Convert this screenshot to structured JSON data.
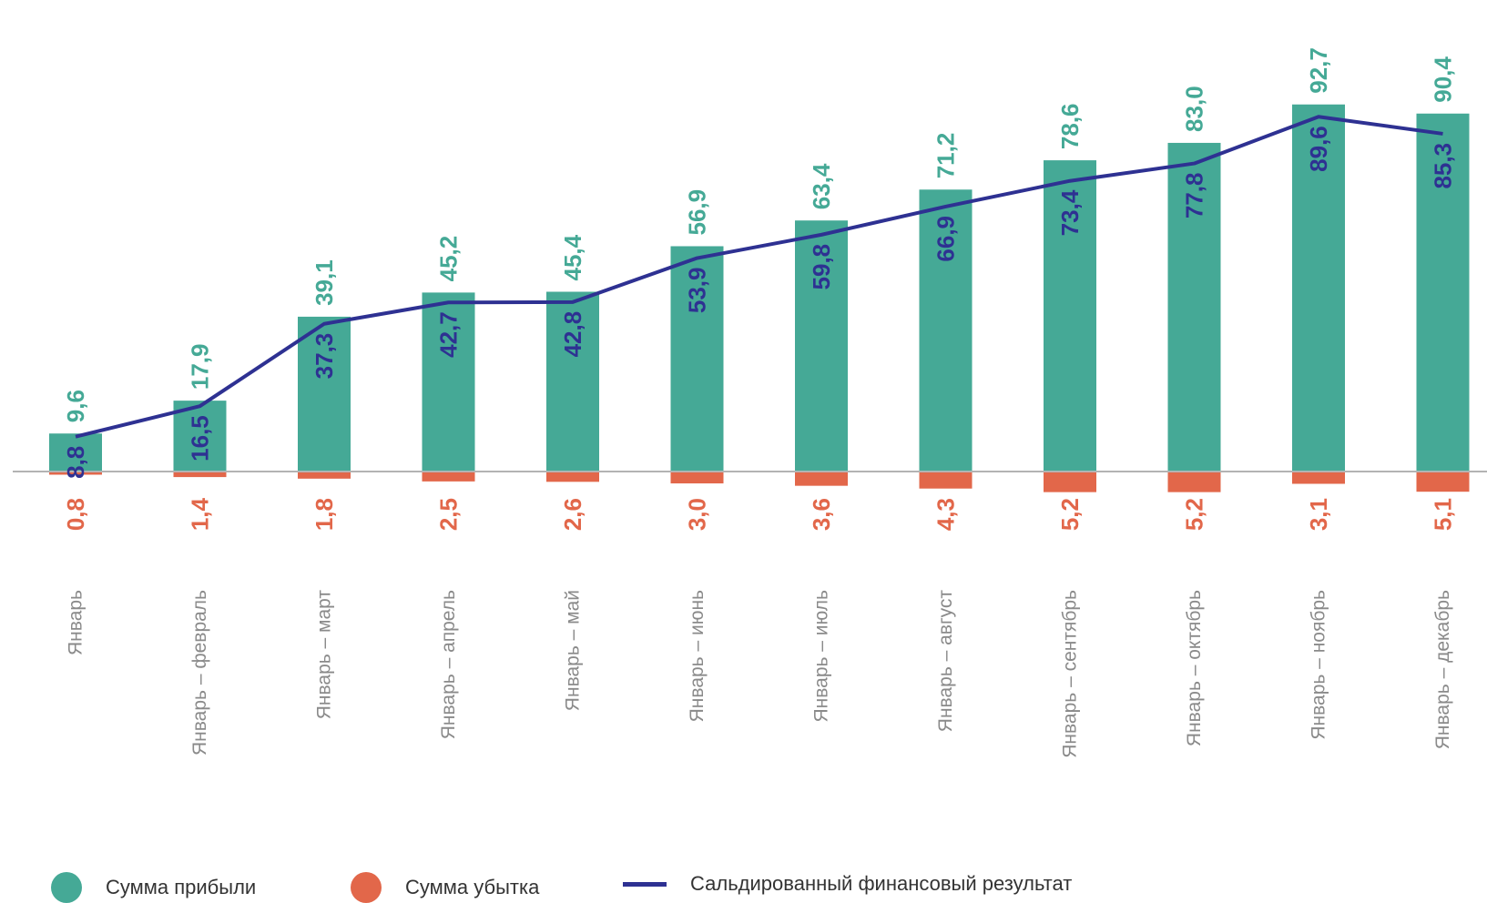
{
  "chart_data": {
    "type": "bar",
    "categories": [
      "Январь",
      "Январь – февраль",
      "Январь – март",
      "Январь – апрель",
      "Январь – май",
      "Январь – июнь",
      "Январь – июль",
      "Январь – август",
      "Январь – сентябрь",
      "Январь – октябрь",
      "Январь – ноябрь",
      "Январь – декабрь"
    ],
    "series": [
      {
        "name": "Сумма прибыли",
        "kind": "bar",
        "color": "#45a996",
        "values": [
          9.6,
          17.9,
          39.1,
          45.2,
          45.4,
          56.9,
          63.4,
          71.2,
          78.6,
          83.0,
          92.7,
          90.4
        ],
        "labels": [
          "9,6",
          "17,9",
          "39,1",
          "45,2",
          "45,4",
          "56,9",
          "63,4",
          "71,2",
          "78,6",
          "83,0",
          "92,7",
          "90,4"
        ]
      },
      {
        "name": "Сумма убытка",
        "kind": "bar-negative",
        "color": "#e2674a",
        "values": [
          0.8,
          1.4,
          1.8,
          2.5,
          2.6,
          3.0,
          3.6,
          4.3,
          5.2,
          5.2,
          3.1,
          5.1
        ],
        "labels": [
          "0,8",
          "1,4",
          "1,8",
          "2,5",
          "2,6",
          "3,0",
          "3,6",
          "4,3",
          "5,2",
          "5,2",
          "3,1",
          "5,1"
        ]
      },
      {
        "name": "Сальдированный финансовый результат",
        "kind": "line",
        "color": "#2e3192",
        "values": [
          8.8,
          16.5,
          37.3,
          42.7,
          42.8,
          53.9,
          59.8,
          66.9,
          73.4,
          77.8,
          89.6,
          85.3
        ],
        "labels": [
          "8,8",
          "16,5",
          "37,3",
          "42,7",
          "42,8",
          "53,9",
          "59,8",
          "66,9",
          "73,4",
          "77,8",
          "89,6",
          "85,3"
        ]
      }
    ],
    "ylim": [
      -8,
      100
    ],
    "grid": false,
    "legend_position": "bottom-left",
    "axis_color": "#b3b3b3"
  },
  "legend": {
    "items": [
      {
        "label": "Сумма прибыли",
        "color": "#45a996",
        "shape": "circle"
      },
      {
        "label": "Сумма убытка",
        "color": "#e2674a",
        "shape": "circle"
      },
      {
        "label": "Сальдированный финансовый результат",
        "color": "#2e3192",
        "shape": "line"
      }
    ]
  }
}
